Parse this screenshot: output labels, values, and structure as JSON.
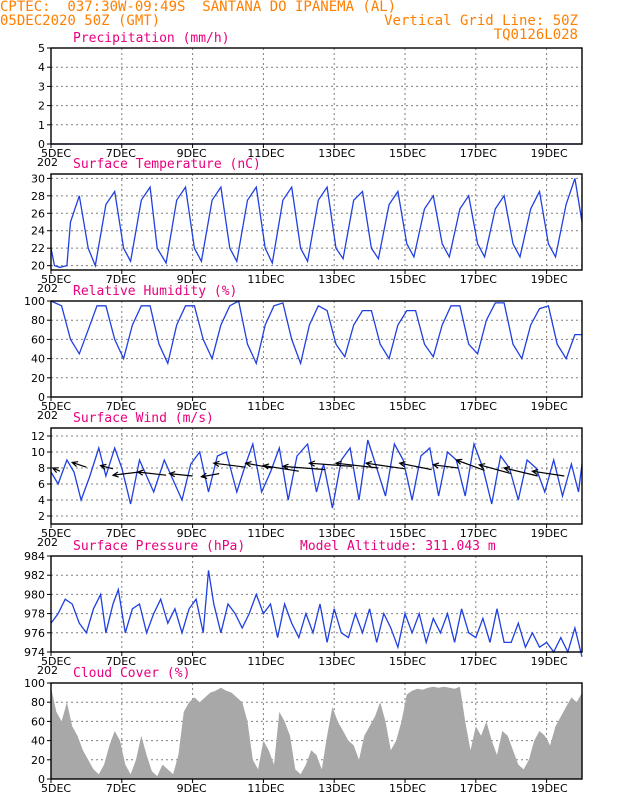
{
  "header": {
    "left_line1": "CPTEC:  037:30W-09:49S  SANTANA DO IPANEMA (AL)",
    "left_line2": "05DEC2020 50Z (GMT)",
    "right_line2": "Vertical Grid Line: 50Z",
    "right_line3": "TQ0126L028",
    "color": "#ff7f00"
  },
  "colors": {
    "title": "#e8007f",
    "line": "#2040e0",
    "bars": "#a8a8a8",
    "grid": "#808080"
  },
  "x_axis": {
    "tick_labels": [
      "5DEC",
      "7DEC",
      "9DEC",
      "11DEC",
      "13DEC",
      "15DEC",
      "17DEC",
      "19DEC"
    ],
    "tick_days": [
      5,
      7,
      9,
      11,
      13,
      15,
      17,
      19
    ],
    "start_day": 5.0,
    "end_day": 20.0,
    "year_fragment": "202"
  },
  "chart_data": [
    {
      "type": "line",
      "title": "Precipitation (mm/h)",
      "ylim": [
        0,
        5
      ],
      "yticks": [
        0,
        1,
        2,
        3,
        4,
        5
      ],
      "x": [
        5.0,
        20.0
      ],
      "values": [
        0,
        0
      ]
    },
    {
      "type": "line",
      "title": "Surface Temperature (nC)",
      "ylim": [
        19.5,
        30.5
      ],
      "yticks": [
        20,
        22,
        24,
        26,
        28,
        30
      ],
      "x": [
        5.0,
        5.1,
        5.25,
        5.45,
        5.55,
        5.8,
        6.05,
        6.25,
        6.55,
        6.8,
        7.05,
        7.25,
        7.55,
        7.8,
        8.0,
        8.25,
        8.55,
        8.8,
        9.05,
        9.25,
        9.55,
        9.8,
        10.05,
        10.25,
        10.55,
        10.8,
        11.05,
        11.25,
        11.55,
        11.8,
        12.05,
        12.25,
        12.55,
        12.8,
        13.05,
        13.25,
        13.55,
        13.8,
        14.05,
        14.25,
        14.55,
        14.8,
        15.05,
        15.25,
        15.55,
        15.8,
        16.05,
        16.25,
        16.55,
        16.8,
        17.05,
        17.25,
        17.55,
        17.8,
        18.05,
        18.25,
        18.55,
        18.8,
        19.05,
        19.25,
        19.55,
        19.8,
        20.0
      ],
      "values": [
        22.0,
        20.0,
        19.8,
        20.0,
        25.0,
        28.0,
        22.0,
        20.0,
        27.0,
        28.5,
        22.0,
        20.5,
        27.5,
        29.0,
        22.0,
        20.3,
        27.5,
        29.0,
        22.0,
        20.5,
        27.5,
        29.0,
        22.0,
        20.5,
        27.5,
        29.0,
        22.0,
        20.3,
        27.5,
        29.0,
        22.0,
        20.5,
        27.5,
        29.0,
        22.0,
        20.8,
        27.5,
        28.5,
        22.0,
        20.8,
        27.0,
        28.5,
        22.5,
        21.0,
        26.5,
        28.0,
        22.5,
        21.0,
        26.5,
        28.0,
        22.5,
        21.0,
        26.5,
        28.0,
        22.5,
        21.0,
        26.5,
        28.5,
        22.5,
        21.0,
        27.0,
        30.0,
        25.0
      ]
    },
    {
      "type": "line",
      "title": "Relative Humidity (%)",
      "ylim": [
        0,
        100
      ],
      "yticks": [
        0,
        20,
        40,
        60,
        80,
        100
      ],
      "x": [
        5.0,
        5.3,
        5.55,
        5.8,
        6.05,
        6.3,
        6.55,
        6.8,
        7.05,
        7.3,
        7.55,
        7.8,
        8.05,
        8.3,
        8.55,
        8.8,
        9.05,
        9.3,
        9.55,
        9.8,
        10.05,
        10.3,
        10.55,
        10.8,
        11.05,
        11.3,
        11.55,
        11.8,
        12.05,
        12.3,
        12.55,
        12.8,
        13.05,
        13.3,
        13.55,
        13.8,
        14.05,
        14.3,
        14.55,
        14.8,
        15.05,
        15.3,
        15.55,
        15.8,
        16.05,
        16.3,
        16.55,
        16.8,
        17.05,
        17.3,
        17.55,
        17.8,
        18.05,
        18.3,
        18.55,
        18.8,
        19.05,
        19.3,
        19.55,
        19.8,
        20.0
      ],
      "values": [
        100,
        95,
        60,
        45,
        70,
        95,
        95,
        60,
        40,
        75,
        95,
        95,
        55,
        35,
        75,
        95,
        95,
        60,
        40,
        75,
        95,
        100,
        55,
        35,
        75,
        95,
        98,
        60,
        35,
        75,
        95,
        90,
        55,
        42,
        75,
        90,
        90,
        55,
        40,
        75,
        90,
        90,
        55,
        42,
        75,
        95,
        95,
        55,
        45,
        80,
        98,
        98,
        55,
        40,
        75,
        92,
        95,
        55,
        40,
        65,
        65
      ]
    },
    {
      "type": "line",
      "title": "Surface Wind (m/s)",
      "ylim": [
        1,
        13
      ],
      "yticks": [
        2,
        4,
        6,
        8,
        10,
        12
      ],
      "x": [
        5.0,
        5.2,
        5.45,
        5.65,
        5.85,
        6.1,
        6.35,
        6.55,
        6.8,
        7.0,
        7.25,
        7.5,
        7.7,
        7.9,
        8.2,
        8.45,
        8.7,
        8.95,
        9.2,
        9.45,
        9.7,
        9.95,
        10.25,
        10.5,
        10.7,
        10.95,
        11.2,
        11.45,
        11.7,
        11.95,
        12.25,
        12.5,
        12.7,
        12.95,
        13.2,
        13.45,
        13.7,
        13.95,
        14.2,
        14.45,
        14.7,
        14.95,
        15.2,
        15.45,
        15.7,
        15.95,
        16.2,
        16.45,
        16.7,
        16.95,
        17.2,
        17.45,
        17.7,
        17.95,
        18.2,
        18.45,
        18.7,
        18.95,
        19.2,
        19.45,
        19.7,
        19.9,
        20.0
      ],
      "values": [
        7.5,
        6.0,
        9.0,
        7.5,
        4.0,
        7.0,
        10.5,
        7.0,
        10.5,
        8.0,
        3.5,
        9.0,
        7.0,
        5.0,
        9.0,
        6.5,
        4.0,
        8.5,
        10.0,
        5.0,
        9.5,
        10.0,
        5.0,
        8.5,
        11.0,
        5.0,
        7.5,
        10.5,
        4.0,
        9.5,
        11.0,
        5.0,
        8.5,
        3.0,
        9.0,
        10.5,
        4.0,
        11.5,
        8.0,
        4.5,
        11.0,
        9.0,
        4.0,
        9.5,
        10.5,
        4.5,
        10.0,
        9.0,
        4.5,
        11.0,
        8.0,
        3.5,
        9.5,
        8.0,
        4.0,
        9.0,
        8.0,
        5.0,
        9.0,
        4.5,
        8.5,
        5.0,
        8.5
      ],
      "vectors": {
        "x": [
          5.25,
          6.0,
          6.75,
          7.5,
          8.25,
          9.0,
          9.75,
          10.5,
          11.25,
          12.0,
          12.75,
          13.5,
          14.25,
          15.0,
          15.75,
          16.5,
          17.25,
          18.0,
          18.75,
          19.5
        ],
        "base_y": [
          7.6,
          8.1,
          7.9,
          7.5,
          7.1,
          7.0,
          7.3,
          8.1,
          8.0,
          7.6,
          7.8,
          8.2,
          8.0,
          7.9,
          7.8,
          8.0,
          7.7,
          7.3,
          7.0,
          7.0
        ],
        "tip_x": [
          5.05,
          5.6,
          6.4,
          6.75,
          7.45,
          8.35,
          9.25,
          9.6,
          10.5,
          11.0,
          11.55,
          12.3,
          13.05,
          13.9,
          14.85,
          15.8,
          16.45,
          17.1,
          17.8,
          18.6
        ],
        "tip_y": [
          8.0,
          8.7,
          8.3,
          7.1,
          7.5,
          7.3,
          6.9,
          8.6,
          8.6,
          8.3,
          8.2,
          8.6,
          8.6,
          8.6,
          8.6,
          8.4,
          9.0,
          8.4,
          8.0,
          7.6
        ]
      }
    },
    {
      "type": "line",
      "title": "Surface Pressure (hPa)",
      "annotation": "Model Altitude: 311.043 m",
      "ylim": [
        974,
        984
      ],
      "yticks": [
        974,
        976,
        978,
        980,
        982,
        984
      ],
      "x": [
        5.0,
        5.2,
        5.4,
        5.6,
        5.8,
        6.0,
        6.2,
        6.4,
        6.55,
        6.75,
        6.9,
        7.1,
        7.3,
        7.5,
        7.7,
        7.9,
        8.1,
        8.3,
        8.5,
        8.7,
        8.9,
        9.1,
        9.3,
        9.45,
        9.6,
        9.8,
        10.0,
        10.2,
        10.4,
        10.6,
        10.8,
        11.0,
        11.2,
        11.4,
        11.6,
        11.8,
        12.0,
        12.2,
        12.4,
        12.6,
        12.8,
        13.0,
        13.2,
        13.4,
        13.6,
        13.8,
        14.0,
        14.2,
        14.4,
        14.6,
        14.8,
        15.0,
        15.2,
        15.4,
        15.6,
        15.8,
        16.0,
        16.2,
        16.4,
        16.6,
        16.8,
        17.0,
        17.2,
        17.4,
        17.6,
        17.8,
        18.0,
        18.2,
        18.4,
        18.6,
        18.8,
        19.0,
        19.2,
        19.4,
        19.6,
        19.8,
        20.0
      ],
      "values": [
        977.0,
        978.0,
        979.5,
        979.0,
        977.0,
        976.0,
        978.5,
        980.0,
        976.0,
        979.0,
        980.5,
        976.0,
        978.5,
        979.0,
        976.0,
        978.0,
        979.5,
        977.0,
        978.5,
        976.0,
        978.5,
        979.5,
        976.0,
        982.5,
        979.0,
        976.0,
        979.0,
        978.0,
        976.5,
        978.0,
        980.0,
        978.0,
        979.0,
        975.5,
        979.0,
        977.0,
        975.5,
        978.0,
        976.0,
        979.0,
        975.0,
        978.5,
        976.0,
        975.5,
        978.0,
        976.0,
        978.5,
        975.0,
        978.0,
        976.5,
        974.5,
        978.0,
        976.0,
        978.0,
        975.0,
        977.5,
        976.0,
        978.0,
        975.0,
        978.5,
        976.0,
        975.5,
        977.5,
        975.0,
        978.5,
        975.0,
        975.0,
        977.0,
        974.5,
        976.0,
        974.5,
        975.0,
        974.0,
        975.5,
        974.0,
        976.5,
        973.5
      ]
    },
    {
      "type": "area",
      "title": "Cloud Cover (%)",
      "ylim": [
        0,
        100
      ],
      "yticks": [
        0,
        20,
        40,
        60,
        80,
        100
      ],
      "x": [
        5.0,
        5.15,
        5.3,
        5.45,
        5.6,
        5.75,
        5.9,
        6.05,
        6.2,
        6.35,
        6.5,
        6.65,
        6.8,
        6.95,
        7.1,
        7.25,
        7.4,
        7.55,
        7.7,
        7.85,
        8.0,
        8.15,
        8.3,
        8.45,
        8.6,
        8.75,
        8.9,
        9.05,
        9.2,
        9.35,
        9.5,
        9.65,
        9.8,
        9.95,
        10.1,
        10.25,
        10.4,
        10.55,
        10.7,
        10.85,
        11.0,
        11.15,
        11.3,
        11.45,
        11.6,
        11.75,
        11.9,
        12.05,
        12.2,
        12.35,
        12.5,
        12.65,
        12.8,
        12.95,
        13.1,
        13.25,
        13.4,
        13.55,
        13.7,
        13.85,
        14.0,
        14.15,
        14.3,
        14.45,
        14.6,
        14.75,
        14.9,
        15.05,
        15.2,
        15.35,
        15.5,
        15.65,
        15.8,
        15.95,
        16.1,
        16.25,
        16.4,
        16.55,
        16.7,
        16.85,
        17.0,
        17.15,
        17.3,
        17.45,
        17.6,
        17.75,
        17.9,
        18.05,
        18.2,
        18.35,
        18.5,
        18.65,
        18.8,
        18.95,
        19.1,
        19.25,
        19.4,
        19.55,
        19.7,
        19.85,
        20.0
      ],
      "values": [
        95,
        70,
        60,
        80,
        55,
        45,
        30,
        20,
        10,
        5,
        15,
        35,
        50,
        40,
        15,
        5,
        20,
        45,
        25,
        8,
        3,
        15,
        10,
        5,
        25,
        70,
        80,
        85,
        80,
        85,
        90,
        92,
        95,
        92,
        90,
        85,
        80,
        60,
        20,
        10,
        40,
        30,
        15,
        70,
        60,
        45,
        10,
        5,
        15,
        30,
        25,
        10,
        45,
        75,
        60,
        50,
        40,
        35,
        20,
        45,
        55,
        65,
        80,
        60,
        30,
        40,
        60,
        88,
        92,
        94,
        93,
        95,
        96,
        95,
        96,
        95,
        94,
        96,
        60,
        30,
        55,
        45,
        60,
        40,
        25,
        50,
        45,
        30,
        15,
        10,
        20,
        40,
        50,
        45,
        35,
        55,
        65,
        75,
        85,
        80,
        90
      ]
    }
  ]
}
